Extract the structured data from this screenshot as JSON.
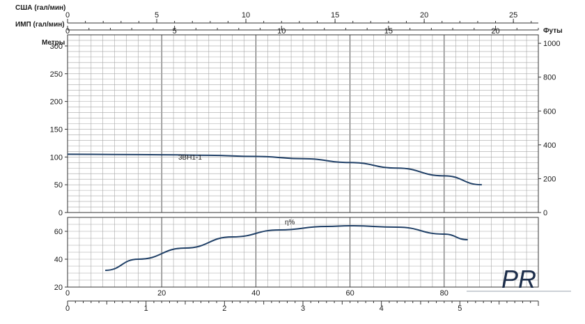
{
  "colors": {
    "curve": "#1f3f66",
    "grid_major": "#3a3a3a",
    "grid_minor": "#a6a6a6",
    "logo": "#1c2d4a"
  },
  "chart_data": [
    {
      "type": "line",
      "panel": "head",
      "series": [
        {
          "name": "3BH1-1",
          "x": [
            0,
            10,
            20,
            30,
            40,
            50,
            60,
            70,
            80,
            88
          ],
          "values": [
            105,
            104.5,
            104,
            103,
            101,
            97,
            90,
            80,
            66,
            50
          ]
        }
      ],
      "ylabel": "Метры",
      "y2label": "Футы",
      "ylim": [
        0,
        320
      ],
      "yticks": [
        0,
        50,
        100,
        150,
        200,
        250,
        300
      ],
      "y2lim": [
        0,
        1050
      ],
      "y2ticks": [
        0,
        200,
        400,
        600,
        800,
        1000
      ],
      "grid": true
    },
    {
      "type": "line",
      "panel": "efficiency",
      "series": [
        {
          "name": "η%",
          "x": [
            8,
            15,
            25,
            35,
            45,
            55,
            60,
            70,
            80,
            85
          ],
          "values": [
            32,
            40,
            48,
            56,
            61,
            63.5,
            64,
            63,
            58,
            54
          ]
        }
      ],
      "ylim": [
        20,
        70
      ],
      "yticks": [
        20,
        40,
        60
      ],
      "grid": true
    }
  ],
  "axes": {
    "usa_label": "США (гал/мин)",
    "usa_ticks": [
      "0",
      "5",
      "10",
      "15",
      "20",
      "25"
    ],
    "imp_label": "ИМП (гал/мин)",
    "imp_ticks": [
      "0",
      "5",
      "10",
      "15",
      "20"
    ],
    "lpm_ticks": [
      "0",
      "20",
      "40",
      "60",
      "80"
    ],
    "m3h_ticks": [
      "0",
      "1",
      "2",
      "3",
      "4",
      "5"
    ]
  },
  "logo": {
    "text": "PR"
  }
}
